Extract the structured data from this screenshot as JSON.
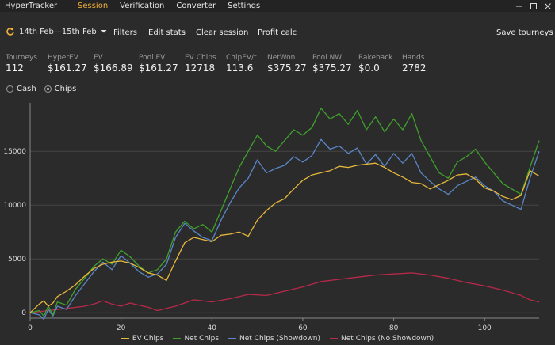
{
  "app": {
    "title": "HyperTracker"
  },
  "menu": [
    "Session",
    "Verification",
    "Converter",
    "Settings"
  ],
  "window_controls": {
    "minimize": "minimize-icon",
    "maximize": "maximize-icon",
    "close": "close-icon"
  },
  "toolbar": {
    "date_range": "14th Feb—15th Feb",
    "filters": "Filters",
    "edit_stats": "Edit stats",
    "clear_session": "Clear session",
    "profit_calc": "Profit calc",
    "save_tourneys": "Save tourneys"
  },
  "stats": [
    {
      "label": "Tourneys",
      "value": "112"
    },
    {
      "label": "HyperEV",
      "value": "$161.27"
    },
    {
      "label": "EV",
      "value": "$166.89"
    },
    {
      "label": "Pool EV",
      "value": "$161.27"
    },
    {
      "label": "EV Chips",
      "value": "12718"
    },
    {
      "label": "ChipEV/t",
      "value": "113.6"
    },
    {
      "label": "NetWon",
      "value": "$375.27"
    },
    {
      "label": "Pool NW",
      "value": "$375.27"
    },
    {
      "label": "Rakeback",
      "value": "$0.0"
    },
    {
      "label": "Hands",
      "value": "2782"
    }
  ],
  "mode": {
    "options": [
      "Cash",
      "Chips"
    ],
    "selected": "Chips"
  },
  "colors": {
    "accent": "#f0b23c",
    "ev": "#e8b83a",
    "net": "#3fa12c",
    "showdown": "#5a86c6",
    "noshowdown": "#b8294a",
    "grid": "#444444"
  },
  "chart_data": {
    "type": "line",
    "xlim": [
      0,
      112
    ],
    "ylim": [
      -500,
      19500
    ],
    "xticks": [
      0,
      20,
      40,
      60,
      80,
      100
    ],
    "yticks": [
      0,
      5000,
      10000,
      15000
    ],
    "series": [
      {
        "name": "EV Chips",
        "color": "#e8b83a",
        "x": [
          0,
          2,
          3,
          4,
          5,
          6,
          8,
          10,
          12,
          14,
          16,
          18,
          20,
          22,
          24,
          26,
          28,
          30,
          32,
          34,
          36,
          38,
          40,
          42,
          44,
          46,
          48,
          50,
          52,
          54,
          56,
          58,
          60,
          62,
          64,
          66,
          68,
          70,
          72,
          74,
          76,
          78,
          80,
          82,
          84,
          86,
          88,
          90,
          92,
          94,
          96,
          98,
          100,
          102,
          104,
          106,
          108,
          110,
          112
        ],
        "y": [
          0,
          800,
          1100,
          600,
          900,
          1500,
          2000,
          2600,
          3400,
          4100,
          4500,
          4700,
          4800,
          4600,
          4200,
          3700,
          3500,
          3000,
          4800,
          6500,
          7000,
          6800,
          6600,
          7200,
          7300,
          7500,
          7100,
          8600,
          9500,
          10200,
          10600,
          11500,
          12300,
          12800,
          13000,
          13200,
          13600,
          13500,
          13700,
          13800,
          13900,
          13500,
          13000,
          12600,
          12100,
          12000,
          11500,
          11900,
          12300,
          12800,
          12900,
          12400,
          11600,
          11300,
          10800,
          10500,
          10900,
          13200,
          12700
        ]
      },
      {
        "name": "Net Chips",
        "color": "#3fa12c",
        "x": [
          0,
          2,
          3,
          4,
          5,
          6,
          8,
          10,
          12,
          14,
          16,
          18,
          20,
          22,
          24,
          26,
          28,
          30,
          32,
          34,
          36,
          38,
          40,
          42,
          44,
          46,
          48,
          50,
          52,
          54,
          56,
          58,
          60,
          62,
          64,
          66,
          68,
          70,
          72,
          74,
          76,
          78,
          80,
          82,
          84,
          86,
          88,
          90,
          92,
          94,
          96,
          98,
          100,
          102,
          104,
          106,
          108,
          110,
          112
        ],
        "y": [
          0,
          200,
          -300,
          600,
          -200,
          1000,
          700,
          2200,
          3200,
          4300,
          5000,
          4500,
          5800,
          5200,
          4300,
          3700,
          4000,
          5000,
          7500,
          8500,
          7800,
          8200,
          7500,
          9500,
          11500,
          13500,
          15000,
          16500,
          15500,
          15000,
          16000,
          17000,
          16500,
          17200,
          19000,
          18000,
          18500,
          17500,
          18800,
          17000,
          18200,
          16800,
          18000,
          17000,
          18500,
          16000,
          14500,
          13000,
          12500,
          14000,
          14500,
          15200,
          14000,
          13000,
          12000,
          11500,
          11000,
          13500,
          16000
        ]
      },
      {
        "name": "Net Chips (Showdown)",
        "color": "#5a86c6",
        "x": [
          0,
          2,
          3,
          4,
          5,
          6,
          8,
          10,
          12,
          14,
          16,
          18,
          20,
          22,
          24,
          26,
          28,
          30,
          32,
          34,
          36,
          38,
          40,
          42,
          44,
          46,
          48,
          50,
          52,
          54,
          56,
          58,
          60,
          62,
          64,
          66,
          68,
          70,
          72,
          74,
          76,
          78,
          80,
          82,
          84,
          86,
          88,
          90,
          92,
          94,
          96,
          98,
          100,
          102,
          104,
          106,
          108,
          110,
          112
        ],
        "y": [
          0,
          -200,
          -600,
          300,
          -300,
          600,
          300,
          1600,
          2700,
          3800,
          4700,
          4000,
          5300,
          4600,
          3800,
          3300,
          3600,
          4500,
          7000,
          8300,
          7600,
          7000,
          6700,
          8600,
          10200,
          11600,
          12500,
          14200,
          13000,
          13400,
          13700,
          14500,
          14000,
          14600,
          16100,
          15200,
          15500,
          14800,
          15300,
          13800,
          14700,
          13600,
          14800,
          13900,
          14800,
          13000,
          12200,
          11500,
          11000,
          11800,
          12200,
          12600,
          11800,
          11300,
          10400,
          10000,
          9600,
          12500,
          15000
        ]
      },
      {
        "name": "Net Chips (No Showdown)",
        "color": "#b8294a",
        "x": [
          0,
          4,
          8,
          12,
          14,
          16,
          18,
          20,
          22,
          24,
          26,
          28,
          30,
          32,
          34,
          36,
          40,
          44,
          48,
          52,
          56,
          60,
          64,
          68,
          72,
          76,
          80,
          84,
          88,
          92,
          96,
          100,
          104,
          108,
          110,
          112
        ],
        "y": [
          0,
          200,
          400,
          600,
          800,
          1100,
          800,
          600,
          900,
          700,
          500,
          200,
          400,
          600,
          900,
          1200,
          1000,
          1300,
          1700,
          1600,
          2000,
          2400,
          2900,
          3100,
          3300,
          3500,
          3600,
          3700,
          3500,
          3200,
          2800,
          2500,
          2100,
          1600,
          1200,
          1000
        ]
      }
    ],
    "legend_position": "bottom"
  }
}
